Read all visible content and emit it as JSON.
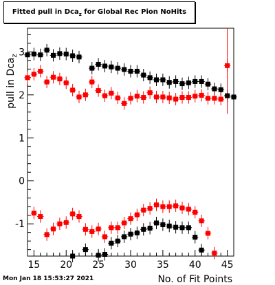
{
  "chart_data": {
    "type": "scatter",
    "title_main": "Fitted pull in Dca",
    "title_sub": "z",
    "title_rest": " for Global Rec Pion NoHits",
    "xlabel": "No. of Fit Points",
    "ylabel_main": "pull in Dca",
    "ylabel_sub": "z",
    "xlim": [
      14,
      46
    ],
    "ylim": [
      -1.75,
      3.55
    ],
    "xticks": [
      15,
      20,
      25,
      30,
      35,
      40,
      45
    ],
    "yticks": [
      -1,
      0,
      1,
      2,
      3
    ],
    "grid": false,
    "series": [
      {
        "color": "#000000",
        "x": [
          14,
          15,
          16,
          17,
          18,
          19,
          20,
          21,
          22,
          23,
          24,
          25,
          26,
          27,
          28,
          29,
          30,
          31,
          32,
          33,
          34,
          35,
          36,
          37,
          38,
          39,
          40,
          41,
          42,
          43,
          44,
          45,
          46
        ],
        "y": [
          2.93,
          2.95,
          2.93,
          3.04,
          2.92,
          2.96,
          2.95,
          2.91,
          2.88,
          null,
          2.62,
          2.71,
          2.67,
          2.65,
          2.62,
          2.59,
          2.55,
          2.55,
          2.46,
          2.4,
          2.35,
          2.35,
          2.29,
          2.31,
          2.26,
          2.28,
          2.31,
          2.31,
          2.25,
          2.14,
          2.12,
          1.98,
          1.95
        ]
      },
      {
        "color": "#ff0000",
        "x": [
          14,
          15,
          16,
          17,
          18,
          19,
          20,
          21,
          22,
          23,
          24,
          25,
          26,
          27,
          28,
          29,
          30,
          31,
          32,
          33,
          34,
          35,
          36,
          37,
          38,
          39,
          40,
          41,
          42,
          43,
          44,
          45,
          46
        ],
        "y": [
          2.4,
          2.48,
          2.55,
          2.3,
          2.41,
          2.37,
          2.28,
          2.11,
          1.95,
          2.0,
          2.3,
          2.1,
          1.98,
          2.04,
          1.93,
          1.8,
          1.92,
          1.97,
          1.94,
          2.05,
          1.95,
          1.95,
          1.93,
          1.9,
          1.94,
          1.94,
          1.97,
          1.99,
          1.92,
          1.92,
          1.9,
          2.68,
          null
        ]
      },
      {
        "color": "#ff0000",
        "x": [
          14,
          15,
          16,
          17,
          18,
          19,
          20,
          21,
          22,
          23,
          24,
          25,
          26,
          27,
          28,
          29,
          30,
          31,
          32,
          33,
          34,
          35,
          36,
          37,
          38,
          39,
          40,
          41,
          42,
          43,
          44,
          45,
          46
        ],
        "y": [
          null,
          -0.75,
          -0.83,
          -1.25,
          -1.12,
          -1.0,
          -0.97,
          -0.77,
          -0.83,
          -1.13,
          -1.18,
          -1.12,
          -1.3,
          -1.09,
          -1.09,
          -0.98,
          -0.88,
          -0.79,
          -0.68,
          -0.64,
          -0.56,
          -0.6,
          -0.6,
          -0.58,
          -0.63,
          -0.66,
          -0.73,
          -0.93,
          -1.22,
          -1.68,
          null,
          null,
          null
        ]
      },
      {
        "color": "#000000",
        "x": [
          14,
          15,
          16,
          17,
          18,
          19,
          20,
          21,
          22,
          23,
          24,
          25,
          26,
          27,
          28,
          29,
          30,
          31,
          32,
          33,
          34,
          35,
          36,
          37,
          38,
          39,
          40,
          41,
          42,
          43,
          44,
          45,
          46
        ],
        "y": [
          null,
          null,
          null,
          null,
          null,
          null,
          null,
          -1.75,
          null,
          -1.6,
          null,
          -1.73,
          -1.71,
          -1.45,
          -1.4,
          -1.3,
          -1.24,
          -1.21,
          -1.13,
          -1.1,
          -0.98,
          -1.02,
          -1.05,
          -1.08,
          -1.09,
          -1.09,
          -1.31,
          -1.61,
          null,
          null,
          null,
          null,
          null
        ]
      }
    ],
    "error_bars": [
      {
        "x": 45,
        "low": 1.56,
        "high": 3.55,
        "color": "#ff0000"
      },
      {
        "x": 46,
        "low": 1.75,
        "high": 2.12,
        "color": "#000000"
      }
    ]
  },
  "footer": {
    "date": "Mon Jan 18 15:53:27 2021"
  }
}
